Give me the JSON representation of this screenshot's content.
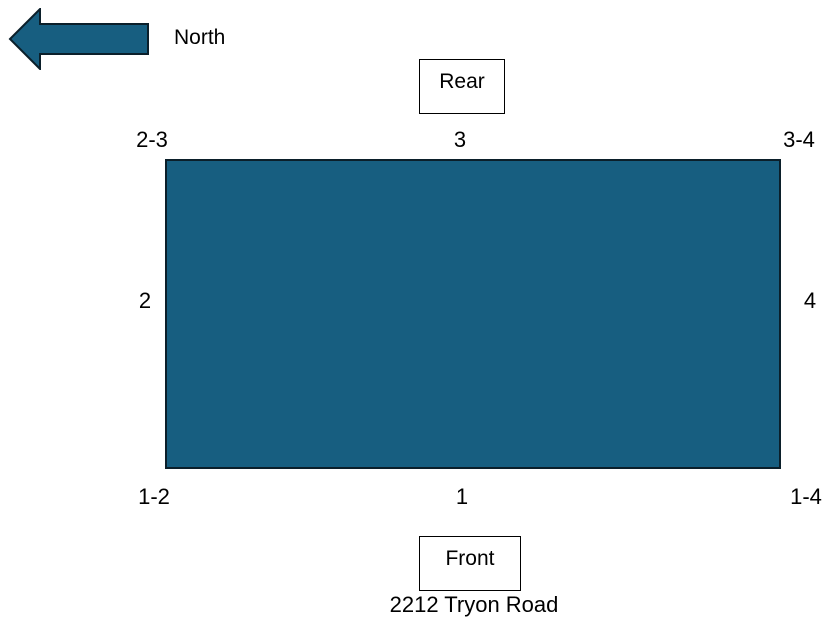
{
  "compass": {
    "direction_label": "North",
    "arrow_icon": "arrow-left-icon",
    "arrow_color": "#175e80"
  },
  "building": {
    "fill_color": "#175e80"
  },
  "labels": {
    "rear": "Rear",
    "front": "Front",
    "address": "2212 Tryon Road"
  },
  "sides": {
    "side_1": "1",
    "side_2": "2",
    "side_3": "3",
    "side_4": "4"
  },
  "corners": {
    "corner_1_2": "1-2",
    "corner_2_3": "2-3",
    "corner_3_4": "3-4",
    "corner_1_4": "1-4"
  }
}
